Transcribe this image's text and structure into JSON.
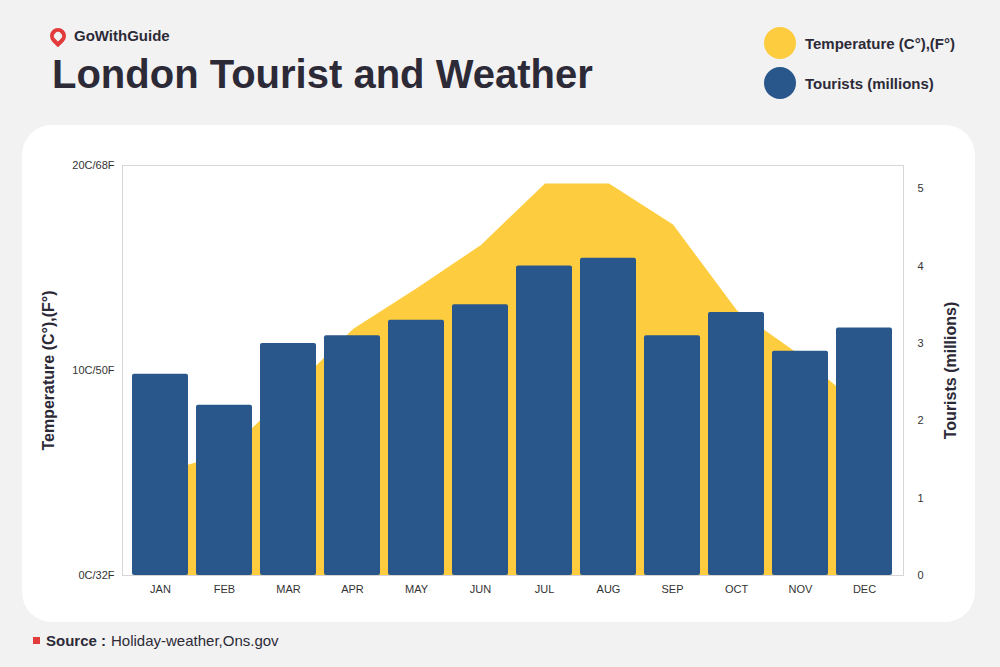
{
  "chart_data": {
    "type": "bar",
    "title": "London Tourist and Weather",
    "annotations": [
      "GoWithGuide",
      "Source :",
      "Holiday-weather,Ons.gov"
    ],
    "categories": [
      "JAN",
      "FEB",
      "MAR",
      "APR",
      "MAY",
      "JUN",
      "JUL",
      "AUG",
      "SEP",
      "OCT",
      "NOV",
      "DEC"
    ],
    "series": [
      {
        "name": "Temperature (C°),(F°)",
        "type": "area",
        "color": "#fdcd3f",
        "axis": "y",
        "values": [
          5,
          5.9,
          8.9,
          12,
          14,
          16.1,
          19.1,
          19.1,
          17.1,
          12.9,
          10.7,
          8
        ]
      },
      {
        "name": "Tourists (millions)",
        "type": "bar",
        "color": "#2a578b",
        "axis": "y2",
        "values": [
          2.6,
          2.2,
          3.0,
          3.1,
          3.3,
          3.5,
          4.0,
          4.1,
          3.1,
          3.4,
          2.9,
          3.2
        ]
      }
    ],
    "ylabel": "Temperature (C°),(F°)",
    "y2label": "Tourists (millions)",
    "ylim": [
      0,
      20
    ],
    "yticks": [
      {
        "value": 0,
        "label": "0C/32F"
      },
      {
        "value": 10,
        "label": "10C/50F"
      },
      {
        "value": 20,
        "label": "20C/68F"
      }
    ],
    "y2lim": [
      0,
      5.3
    ],
    "y2ticks": [
      0,
      1,
      2,
      3,
      4,
      5
    ],
    "grid": false,
    "legend": "top-right"
  }
}
